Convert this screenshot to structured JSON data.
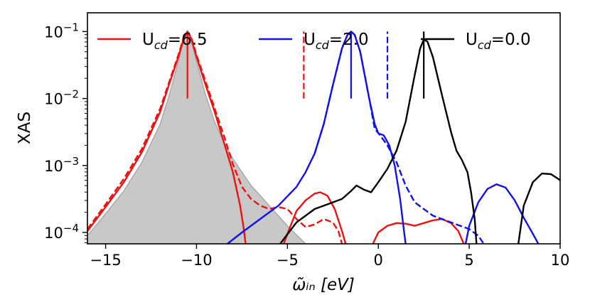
{
  "chart_data": {
    "type": "line",
    "title": "",
    "xlabel": "ω̃ᵢₙ [eV]",
    "ylabel": "XAS",
    "xlim": [
      -16,
      10
    ],
    "ylim_log10": [
      -4.17,
      -0.72
    ],
    "yscale": "log",
    "grid": false,
    "legend_position": "top",
    "x_ticks": [
      {
        "value": -15,
        "label": "−15"
      },
      {
        "value": -10,
        "label": "−10"
      },
      {
        "value": -5,
        "label": "−5"
      },
      {
        "value": 0,
        "label": "0"
      },
      {
        "value": 5,
        "label": "5"
      },
      {
        "value": 10,
        "label": "10"
      }
    ],
    "y_ticks": [
      {
        "value": -4,
        "base": "10",
        "exp": "−4"
      },
      {
        "value": -3,
        "base": "10",
        "exp": "−3"
      },
      {
        "value": -2,
        "base": "10",
        "exp": "−2"
      },
      {
        "value": -1,
        "base": "10",
        "exp": "−1"
      }
    ],
    "legend": [
      {
        "label_main": "U",
        "label_sub": "cd",
        "label_value": "=6.5",
        "color": "#ee1111"
      },
      {
        "label_main": "U",
        "label_sub": "cd",
        "label_value": "=2.0",
        "color": "#1111ee"
      },
      {
        "label_main": "U",
        "label_sub": "cd",
        "label_value": "=0.0",
        "color": "#000000"
      }
    ],
    "filled_reference": {
      "name": "gray-reference",
      "fill": "#c8c8c8",
      "stroke": "#aaaaaa",
      "points": [
        [
          -16,
          -4.05
        ],
        [
          -15,
          -3.72
        ],
        [
          -14,
          -3.38
        ],
        [
          -13,
          -2.95
        ],
        [
          -12,
          -2.38
        ],
        [
          -11.5,
          -1.95
        ],
        [
          -11,
          -1.45
        ],
        [
          -10.7,
          -1.12
        ],
        [
          -10.5,
          -1.0
        ],
        [
          -10.3,
          -1.12
        ],
        [
          -10,
          -1.45
        ],
        [
          -9.5,
          -1.95
        ],
        [
          -9,
          -2.35
        ],
        [
          -8.5,
          -2.65
        ],
        [
          -8,
          -2.9
        ],
        [
          -7,
          -3.3
        ],
        [
          -6,
          -3.6
        ],
        [
          -5,
          -3.9
        ],
        [
          -4,
          -4.17
        ]
      ]
    },
    "vertical_markers": [
      {
        "x": -10.5,
        "y0": -2.0,
        "y1": -1.0,
        "color": "#ee1111",
        "dashed": false
      },
      {
        "x": -4.1,
        "y0": -2.0,
        "y1": -1.0,
        "color": "#ee1111",
        "dashed": true
      },
      {
        "x": -1.5,
        "y0": -2.0,
        "y1": -1.0,
        "color": "#1111ee",
        "dashed": false
      },
      {
        "x": 0.5,
        "y0": -2.0,
        "y1": -1.0,
        "color": "#1111ee",
        "dashed": true
      },
      {
        "x": 2.5,
        "y0": -2.0,
        "y1": -1.0,
        "color": "#000000",
        "dashed": false
      }
    ],
    "series": [
      {
        "name": "red-solid",
        "color": "#ee1111",
        "dashed": false,
        "segments": [
          [
            [
              -16,
              -3.98
            ],
            [
              -15,
              -3.62
            ],
            [
              -14,
              -3.25
            ],
            [
              -13,
              -2.8
            ],
            [
              -12,
              -2.2
            ],
            [
              -11.5,
              -1.78
            ],
            [
              -11,
              -1.38
            ],
            [
              -10.7,
              -1.1
            ],
            [
              -10.5,
              -1.0
            ],
            [
              -10.3,
              -1.1
            ],
            [
              -10,
              -1.38
            ],
            [
              -9.5,
              -1.8
            ],
            [
              -9,
              -2.2
            ],
            [
              -8.5,
              -2.65
            ],
            [
              -8,
              -3.1
            ],
            [
              -7.6,
              -3.6
            ],
            [
              -7.4,
              -3.95
            ],
            [
              -7.3,
              -4.17
            ]
          ],
          [
            [
              -5.2,
              -4.17
            ],
            [
              -4.9,
              -3.95
            ],
            [
              -4.5,
              -3.68
            ],
            [
              -4,
              -3.52
            ],
            [
              -3.5,
              -3.42
            ],
            [
              -3.2,
              -3.4
            ],
            [
              -2.8,
              -3.45
            ],
            [
              -2.4,
              -3.65
            ],
            [
              -2,
              -3.98
            ],
            [
              -1.8,
              -4.17
            ]
          ],
          [
            [
              -0.3,
              -4.17
            ],
            [
              0,
              -4.0
            ],
            [
              0.5,
              -3.9
            ],
            [
              1,
              -3.86
            ],
            [
              1.5,
              -3.87
            ],
            [
              2,
              -3.9
            ],
            [
              2.5,
              -3.86
            ],
            [
              3,
              -3.82
            ],
            [
              3.5,
              -3.8
            ],
            [
              4,
              -3.86
            ],
            [
              4.4,
              -3.98
            ],
            [
              4.7,
              -4.17
            ]
          ]
        ]
      },
      {
        "name": "red-dashed",
        "color": "#ee1111",
        "dashed": true,
        "segments": [
          [
            [
              -16,
              -3.95
            ],
            [
              -15,
              -3.58
            ],
            [
              -14,
              -3.2
            ],
            [
              -13,
              -2.75
            ],
            [
              -12,
              -2.15
            ],
            [
              -11.5,
              -1.75
            ],
            [
              -11,
              -1.35
            ],
            [
              -10.7,
              -1.08
            ],
            [
              -10.5,
              -1.0
            ],
            [
              -10.3,
              -1.08
            ],
            [
              -10,
              -1.35
            ],
            [
              -9.5,
              -1.75
            ],
            [
              -9,
              -2.15
            ],
            [
              -8.5,
              -2.55
            ],
            [
              -8,
              -2.98
            ],
            [
              -7.5,
              -3.32
            ],
            [
              -7,
              -3.5
            ],
            [
              -6.5,
              -3.6
            ],
            [
              -6,
              -3.65
            ],
            [
              -5.5,
              -3.62
            ],
            [
              -5,
              -3.65
            ],
            [
              -4.5,
              -3.8
            ],
            [
              -4,
              -3.92
            ],
            [
              -3.5,
              -3.88
            ],
            [
              -3,
              -3.8
            ],
            [
              -2.5,
              -3.85
            ],
            [
              -2.2,
              -3.98
            ],
            [
              -2,
              -4.17
            ]
          ]
        ]
      },
      {
        "name": "blue-solid",
        "color": "#1111ee",
        "dashed": false,
        "segments": [
          [
            [
              -8.3,
              -4.17
            ],
            [
              -7.5,
              -4.0
            ],
            [
              -6.5,
              -3.8
            ],
            [
              -5.5,
              -3.6
            ],
            [
              -4.5,
              -3.32
            ],
            [
              -4,
              -3.1
            ],
            [
              -3.5,
              -2.82
            ],
            [
              -3,
              -2.38
            ],
            [
              -2.5,
              -1.8
            ],
            [
              -2,
              -1.25
            ],
            [
              -1.7,
              -1.05
            ],
            [
              -1.5,
              -1.0
            ],
            [
              -1.3,
              -1.05
            ],
            [
              -1,
              -1.3
            ],
            [
              -0.5,
              -2.0
            ],
            [
              -0.2,
              -2.38
            ],
            [
              0,
              -2.52
            ],
            [
              0.3,
              -2.55
            ],
            [
              0.6,
              -2.7
            ],
            [
              0.9,
              -3.0
            ],
            [
              1.2,
              -3.5
            ],
            [
              1.4,
              -3.95
            ],
            [
              1.5,
              -4.17
            ]
          ],
          [
            [
              4.8,
              -4.17
            ],
            [
              5,
              -3.9
            ],
            [
              5.5,
              -3.55
            ],
            [
              6,
              -3.35
            ],
            [
              6.5,
              -3.28
            ],
            [
              7,
              -3.33
            ],
            [
              7.5,
              -3.52
            ],
            [
              8,
              -3.78
            ],
            [
              8.5,
              -4.02
            ],
            [
              8.8,
              -4.17
            ]
          ]
        ]
      },
      {
        "name": "blue-dashed",
        "color": "#1111ee",
        "dashed": true,
        "segments": [
          [
            [
              -3.5,
              -2.82
            ],
            [
              -3,
              -2.38
            ],
            [
              -2.5,
              -1.8
            ],
            [
              -2,
              -1.25
            ],
            [
              -1.7,
              -1.05
            ],
            [
              -1.5,
              -1.0
            ],
            [
              -1.3,
              -1.05
            ],
            [
              -1,
              -1.3
            ],
            [
              -0.5,
              -2.0
            ],
            [
              -0.2,
              -2.45
            ],
            [
              0.1,
              -2.55
            ],
            [
              0.5,
              -2.7
            ],
            [
              1,
              -2.95
            ],
            [
              1.5,
              -3.3
            ],
            [
              2,
              -3.55
            ],
            [
              3,
              -3.75
            ],
            [
              4,
              -3.85
            ],
            [
              5,
              -3.95
            ],
            [
              5.5,
              -4.05
            ],
            [
              5.8,
              -4.17
            ]
          ]
        ]
      },
      {
        "name": "black-solid",
        "color": "#000000",
        "dashed": false,
        "segments": [
          [
            [
              -5.4,
              -4.17
            ],
            [
              -4.5,
              -3.85
            ],
            [
              -3.5,
              -3.65
            ],
            [
              -2.5,
              -3.55
            ],
            [
              -2,
              -3.5
            ],
            [
              -1.5,
              -3.38
            ],
            [
              -1.2,
              -3.3
            ],
            [
              -0.8,
              -3.36
            ],
            [
              -0.4,
              -3.4
            ],
            [
              0,
              -3.25
            ],
            [
              0.5,
              -3.05
            ],
            [
              1,
              -2.78
            ],
            [
              1.5,
              -2.35
            ],
            [
              2,
              -1.65
            ],
            [
              2.3,
              -1.25
            ],
            [
              2.5,
              -1.12
            ],
            [
              2.7,
              -1.15
            ],
            [
              3,
              -1.38
            ],
            [
              3.5,
              -1.95
            ],
            [
              4,
              -2.5
            ],
            [
              4.3,
              -2.78
            ],
            [
              4.6,
              -2.92
            ],
            [
              4.9,
              -3.1
            ],
            [
              5.1,
              -3.4
            ],
            [
              5.3,
              -3.8
            ],
            [
              5.4,
              -4.17
            ]
          ],
          [
            [
              7.7,
              -4.17
            ],
            [
              8,
              -3.6
            ],
            [
              8.5,
              -3.25
            ],
            [
              9,
              -3.12
            ],
            [
              9.5,
              -3.13
            ],
            [
              10,
              -3.22
            ]
          ]
        ]
      }
    ]
  }
}
